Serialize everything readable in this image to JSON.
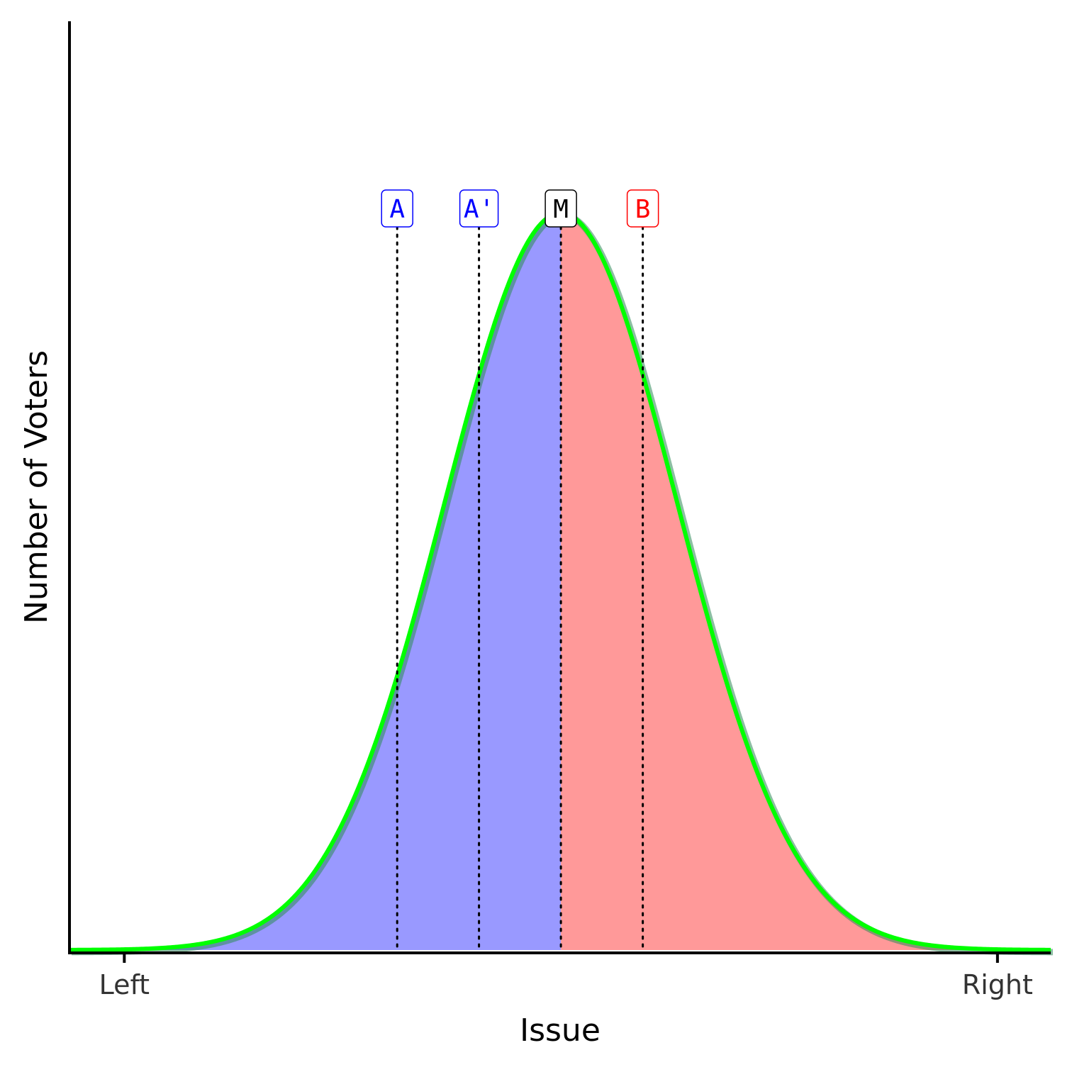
{
  "chart_data": {
    "type": "area",
    "x_axis": {
      "label": "Issue",
      "ticks": [
        {
          "value": 0,
          "label": "Left"
        },
        {
          "value": 1,
          "label": "Right"
        }
      ],
      "range": [
        -0.0628,
        1.061
      ]
    },
    "y_axis": {
      "label": "Number of Voters",
      "range": [
        0,
        1.26
      ]
    },
    "distribution": {
      "kind": "normal",
      "mean": 0.5,
      "sd": 0.1333,
      "peak": 1.0
    },
    "regions": [
      {
        "name": "A side",
        "from": -0.0628,
        "to": 0.5,
        "fill": "#9999ff"
      },
      {
        "name": "B side",
        "from": 0.5,
        "to": 1.061,
        "fill": "#ff9999"
      }
    ],
    "markers": [
      {
        "label": "A",
        "x": 0.3125,
        "color": "#0000ff"
      },
      {
        "label": "A'",
        "x": 0.4062,
        "color": "#0000ff"
      },
      {
        "label": "M",
        "x": 0.5,
        "color": "#000000"
      },
      {
        "label": "B",
        "x": 0.5938,
        "color": "#ff0000"
      }
    ],
    "curve_color": "#00ff00",
    "grid": false,
    "legend": "none"
  }
}
